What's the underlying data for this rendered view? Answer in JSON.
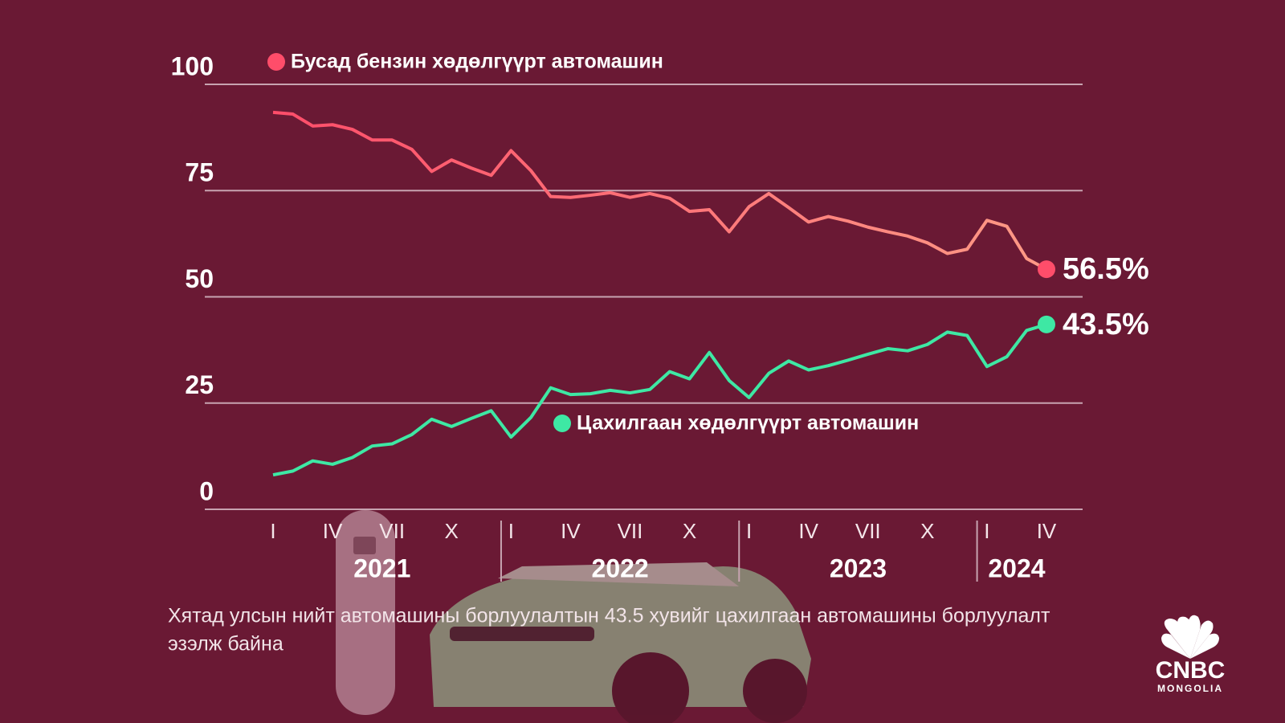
{
  "chart_data": {
    "type": "line",
    "categories": [
      "I",
      null,
      null,
      "IV",
      null,
      null,
      "VII",
      null,
      null,
      "X",
      null,
      null,
      "I",
      null,
      null,
      "IV",
      null,
      null,
      "VII",
      null,
      null,
      "X",
      null,
      null,
      "I",
      null,
      null,
      "IV",
      null,
      null,
      "VII",
      null,
      null,
      "X",
      null,
      null,
      "I",
      null,
      null,
      "IV"
    ],
    "years": [
      "2021",
      "2022",
      "2023",
      "2024"
    ],
    "series": [
      {
        "name": "Бусад бензин хөдөлгүүрт автомашин",
        "color": "#ff4d6a",
        "values": [
          93.4,
          93,
          90.2,
          90.5,
          89.4,
          86.9,
          86.9,
          84.7,
          79.5,
          82.2,
          80.3,
          78.6,
          84.4,
          79.7,
          73.6,
          73.4,
          73.9,
          74.5,
          73.4,
          74.3,
          73.2,
          70.1,
          70.5,
          65.3,
          71.2,
          74.3,
          71,
          67.6,
          68.9,
          67.8,
          66.4,
          65.3,
          64.3,
          62.7,
          60.2,
          61.2,
          68,
          66.6,
          59,
          56.5
        ],
        "value_labels": [
          null,
          null,
          null,
          null,
          null,
          null,
          null,
          null,
          null,
          null,
          null,
          null,
          null,
          null,
          null,
          null,
          null,
          null,
          null,
          null,
          null,
          null,
          null,
          null,
          null,
          null,
          null,
          null,
          null,
          null,
          null,
          null,
          null,
          null,
          null,
          null,
          null,
          null,
          null,
          "56.5%"
        ]
      },
      {
        "name": "Цахилгаан хөдөлгүүрт автомашин",
        "color": "#3ee8a4",
        "values": [
          8.1,
          9,
          11.4,
          10.6,
          12.2,
          14.9,
          15.4,
          17.6,
          21.2,
          19.5,
          21.4,
          23.2,
          17,
          21.6,
          28.6,
          27,
          27.2,
          28,
          27.4,
          28.2,
          32.4,
          30.7,
          36.9,
          30.3,
          26.3,
          32,
          34.9,
          32.8,
          33.8,
          35.1,
          36.5,
          37.8,
          37.3,
          38.8,
          41.7,
          40.9,
          33.6,
          35.9,
          42.1,
          43.5
        ],
        "value_labels": [
          null,
          null,
          null,
          null,
          null,
          null,
          null,
          null,
          null,
          null,
          null,
          null,
          null,
          null,
          null,
          null,
          null,
          null,
          null,
          null,
          null,
          null,
          null,
          null,
          null,
          null,
          null,
          null,
          null,
          null,
          null,
          null,
          null,
          null,
          null,
          null,
          null,
          null,
          null,
          "43.5%"
        ]
      }
    ],
    "ylim": [
      0,
      100
    ],
    "yticks": [
      0,
      25,
      50,
      75,
      100
    ],
    "grid": true,
    "note": "Хятад улсын нийт автомашины борлуулалтын 43.5 хувийг цахилгаан автомашины борлуулалт эзэлж байна"
  },
  "logo": {
    "name": "CNBC",
    "region": "MONGOLIA"
  }
}
